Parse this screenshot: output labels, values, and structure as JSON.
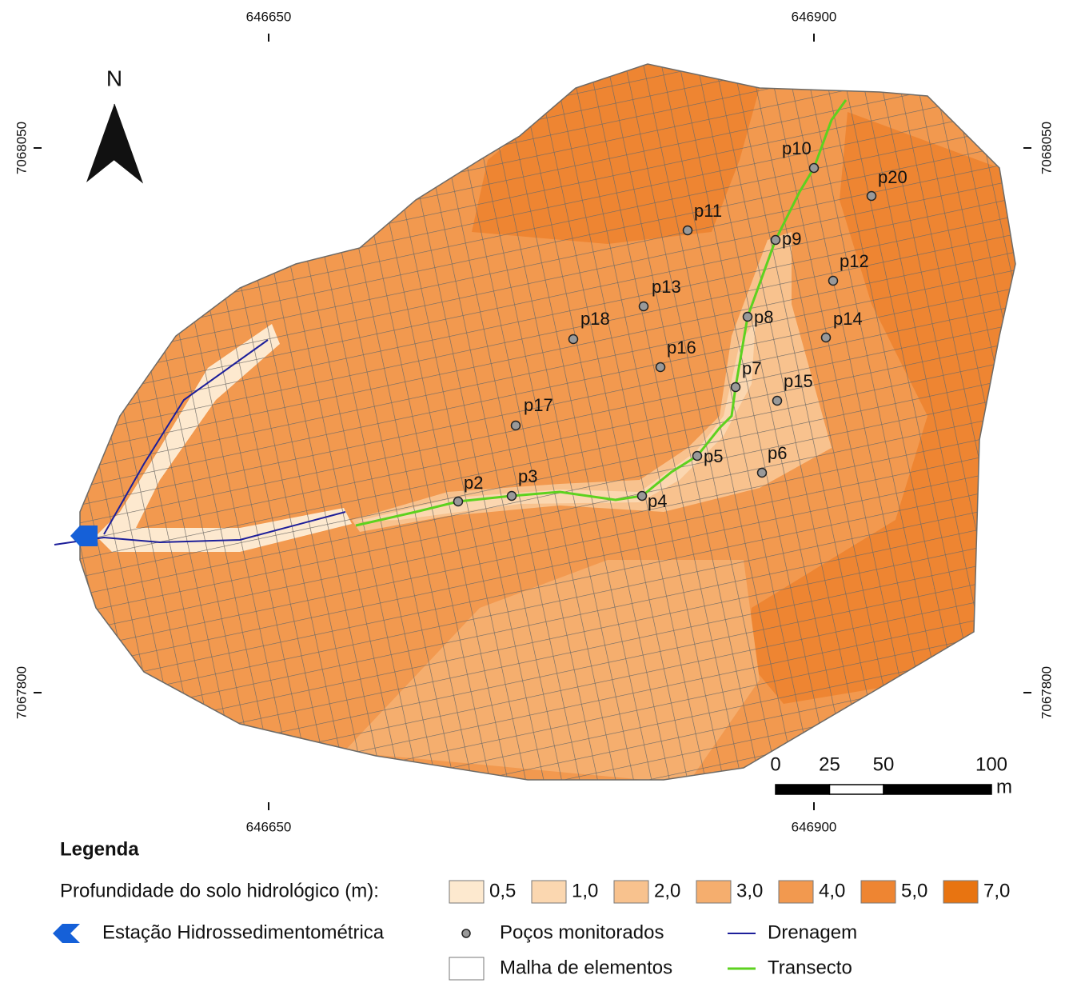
{
  "map": {
    "coords": {
      "top": [
        646650,
        646900
      ],
      "bottom": [
        646650,
        646900
      ],
      "left": [
        7068050,
        7067800
      ],
      "right": [
        7068050,
        7067800
      ]
    },
    "north": "N",
    "wells": [
      "p2",
      "p3",
      "p4",
      "p5",
      "p6",
      "p7",
      "p8",
      "p9",
      "p10",
      "p11",
      "p12",
      "p13",
      "p14",
      "p15",
      "p16",
      "p17",
      "p18",
      "p20"
    ],
    "scale_bar": {
      "ticks": [
        0,
        25,
        50,
        100
      ],
      "unit": "m"
    }
  },
  "legend": {
    "title": "Legenda",
    "depth_label": "Profundidade do solo hidrológico (m):",
    "classes": [
      {
        "label": "0,5",
        "color": "#fde9cf"
      },
      {
        "label": "1,0",
        "color": "#fbd7b0"
      },
      {
        "label": "2,0",
        "color": "#f8c28e"
      },
      {
        "label": "3,0",
        "color": "#f5ae6e"
      },
      {
        "label": "4,0",
        "color": "#f2994f"
      },
      {
        "label": "5,0",
        "color": "#ee8532"
      },
      {
        "label": "7,0",
        "color": "#e87411"
      }
    ],
    "station": "Estação Hidrossedimentométrica",
    "wells": "Poços monitorados",
    "drainage": "Drenagem",
    "mesh": "Malha de elementos",
    "transect": "Transecto"
  }
}
